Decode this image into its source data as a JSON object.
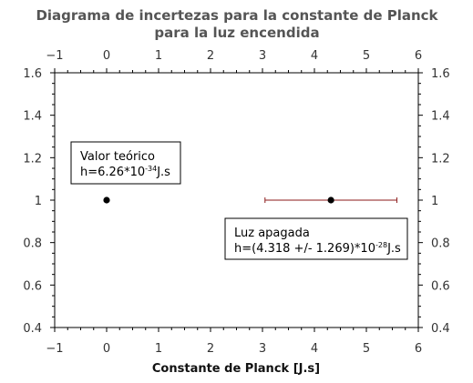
{
  "chart_data": {
    "type": "scatter",
    "title": "Diagrama de incertezas para la constante de Planck",
    "subtitle": "para la luz encendida",
    "xlabel": "Constante de Planck [J.s]",
    "ylabel": "",
    "xlim": [
      -1,
      6
    ],
    "ylim": [
      0.4,
      1.6
    ],
    "xticks": [
      -1,
      0,
      1,
      2,
      3,
      4,
      5,
      6
    ],
    "yticks": [
      0.4,
      0.6,
      0.8,
      1,
      1.2,
      1.4,
      1.6
    ],
    "xtick_labels": [
      "−1",
      "0",
      "1",
      "2",
      "3",
      "4",
      "5",
      "6"
    ],
    "ytick_labels": [
      "0.4",
      "0.6",
      "0.8",
      "1",
      "1.2",
      "1.4",
      "1.6"
    ],
    "grid": false,
    "marker_color": "#000000",
    "errorbar_color": "#8b1a1a",
    "points": [
      {
        "x": 0.0,
        "y": 1.0,
        "xerr": 0
      },
      {
        "x": 4.318,
        "y": 1.0,
        "xerr": 1.269
      }
    ],
    "annotations": [
      {
        "line1": "Valor teórico",
        "prefix": "h=6.26*10",
        "exponent": "-34",
        "suffix": "J.s"
      },
      {
        "line1": "Luz apagada",
        "prefix": "h=(4.318 +/- 1.269)*10",
        "exponent": "-28",
        "suffix": "J.s"
      }
    ]
  }
}
